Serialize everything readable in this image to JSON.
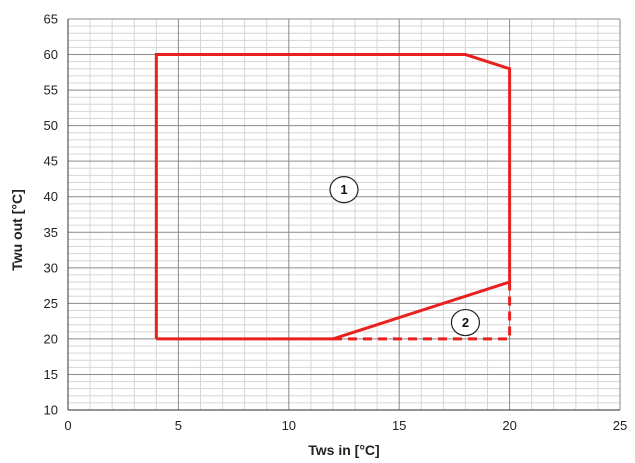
{
  "chart_data": {
    "type": "line",
    "title": "",
    "xlabel": "Tws in [°C]",
    "ylabel": "Twu out [°C]",
    "xlim": [
      0,
      25
    ],
    "ylim": [
      10,
      65
    ],
    "x_ticks": [
      0,
      5,
      10,
      15,
      20,
      25
    ],
    "y_ticks": [
      10,
      15,
      20,
      25,
      30,
      35,
      40,
      45,
      50,
      55,
      60,
      65
    ],
    "grid": true,
    "minor_grid": true,
    "series": [
      {
        "style": "solid",
        "color": "#e8201e",
        "x": [
          4,
          4,
          18,
          20,
          20,
          12,
          4
        ],
        "y": [
          20,
          60,
          60,
          58,
          28,
          20,
          20
        ]
      },
      {
        "style": "dashed",
        "color": "#e8201e",
        "x": [
          12,
          20,
          20
        ],
        "y": [
          20,
          20,
          28
        ]
      }
    ],
    "annotations": [
      {
        "text": "1",
        "x": 12.5,
        "y": 41
      },
      {
        "text": "2",
        "x": 18,
        "y": 22.3
      }
    ]
  }
}
